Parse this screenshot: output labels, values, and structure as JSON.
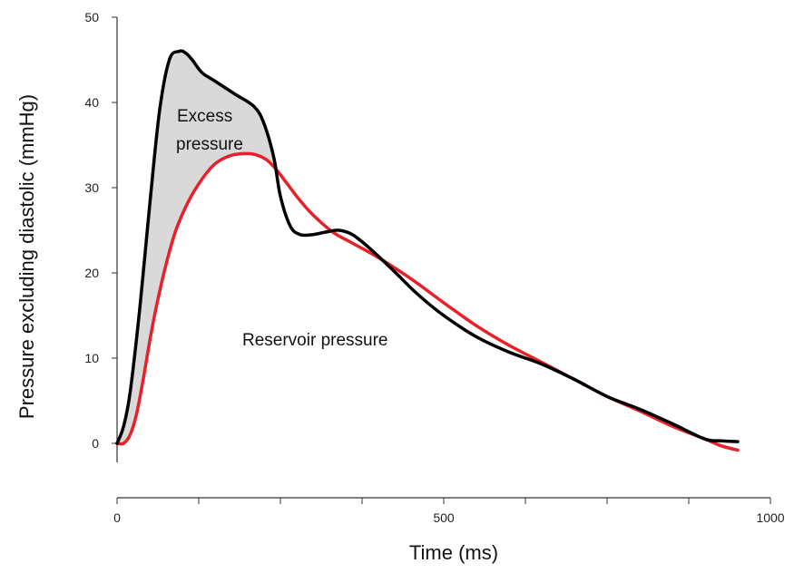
{
  "chart_data": {
    "type": "line",
    "xlabel": "Time (ms)",
    "ylabel": "Pressure excluding diastolic (mmHg)",
    "xlim": [
      0,
      1000
    ],
    "ylim": [
      0,
      50
    ],
    "x_ticks": [
      0,
      500,
      1000
    ],
    "x_minor_ticks": [
      125,
      250,
      375,
      625,
      750,
      875
    ],
    "y_ticks": [
      0,
      10,
      20,
      30,
      40,
      50
    ],
    "grid": false,
    "legend": "none",
    "fill_between": {
      "upper": "total",
      "lower": "reservoir",
      "color": "#d9d9d9"
    },
    "series": [
      {
        "id": "total",
        "color": "#000000",
        "x": [
          0,
          10,
          20,
          35,
          50,
          65,
          80,
          95,
          105,
          115,
          130,
          150,
          180,
          210,
          225,
          240,
          250,
          265,
          280,
          300,
          320,
          340,
          360,
          385,
          420,
          460,
          500,
          550,
          600,
          650,
          700,
          750,
          800,
          850,
          900,
          925,
          950
        ],
        "y": [
          0,
          2,
          6,
          16,
          28,
          39,
          45,
          46,
          45.8,
          45,
          43.5,
          42.5,
          41,
          39.5,
          37.5,
          33.5,
          29,
          25.5,
          24.5,
          24.5,
          24.8,
          25,
          24.5,
          23,
          20.5,
          17.5,
          15,
          12.5,
          10.7,
          9.3,
          7.5,
          5.5,
          4,
          2.3,
          0.5,
          0.3,
          0.2
        ]
      },
      {
        "id": "reservoir",
        "color": "#e8202a",
        "x": [
          0,
          10,
          20,
          30,
          40,
          50,
          60,
          75,
          90,
          110,
          130,
          150,
          175,
          200,
          215,
          230,
          245,
          260,
          280,
          300,
          330,
          360,
          400,
          450,
          500,
          550,
          600,
          650,
          700,
          750,
          800,
          850,
          900,
          925,
          950
        ],
        "y": [
          0,
          0,
          1,
          3.5,
          7.5,
          12,
          16,
          21,
          25,
          28.5,
          31,
          32.8,
          33.8,
          34,
          33.8,
          33.2,
          32,
          30.5,
          28.5,
          26.8,
          24.8,
          23.5,
          21.8,
          19.3,
          16.5,
          13.8,
          11.5,
          9.5,
          7.5,
          5.5,
          3.8,
          2,
          0.5,
          -0.3,
          -0.8
        ]
      }
    ],
    "annotations": [
      {
        "lines": [
          "Excess",
          "pressure"
        ]
      },
      {
        "lines": [
          "Reservoir pressure"
        ]
      }
    ]
  }
}
